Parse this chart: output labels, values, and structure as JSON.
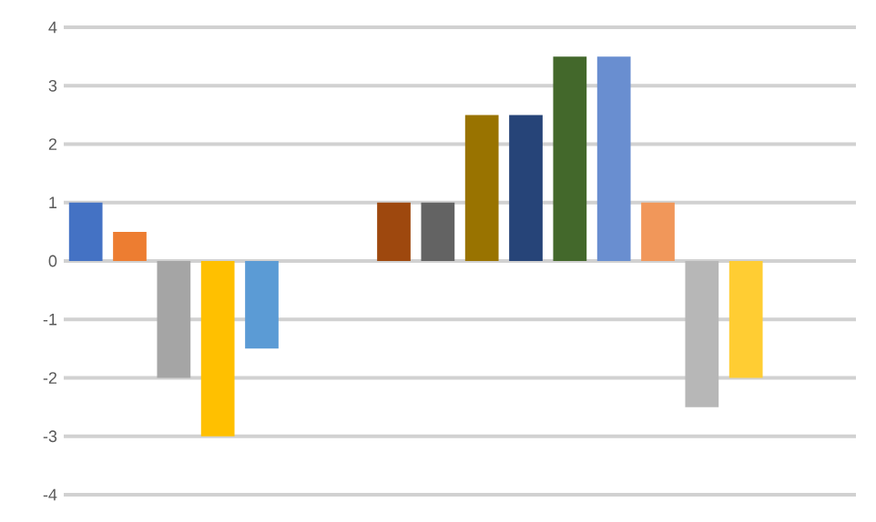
{
  "chart_data": {
    "type": "bar",
    "categories": [
      null,
      null,
      null,
      null,
      null,
      null,
      null,
      null,
      null,
      null,
      null,
      null,
      null,
      null,
      null,
      null,
      null,
      null
    ],
    "values": [
      1,
      0.5,
      -2,
      -3,
      -1.5,
      null,
      null,
      1,
      1,
      2.5,
      2.5,
      3.5,
      3.5,
      1,
      -2.5,
      -2,
      null,
      null
    ],
    "colors": [
      "#4472c4",
      "#ed7d31",
      "#a5a5a5",
      "#ffc000",
      "#5b9bd5",
      null,
      null,
      "#9e480e",
      "#636363",
      "#997300",
      "#264478",
      "#43682b",
      "#698ed0",
      "#f1975a",
      "#b7b7b7",
      "#ffcd33",
      null,
      null
    ],
    "ylim": [
      -4,
      4
    ],
    "yticks": [
      -4,
      -3,
      -2,
      -1,
      0,
      1,
      2,
      3,
      4
    ],
    "grid": "y",
    "tick_labels": "y"
  }
}
